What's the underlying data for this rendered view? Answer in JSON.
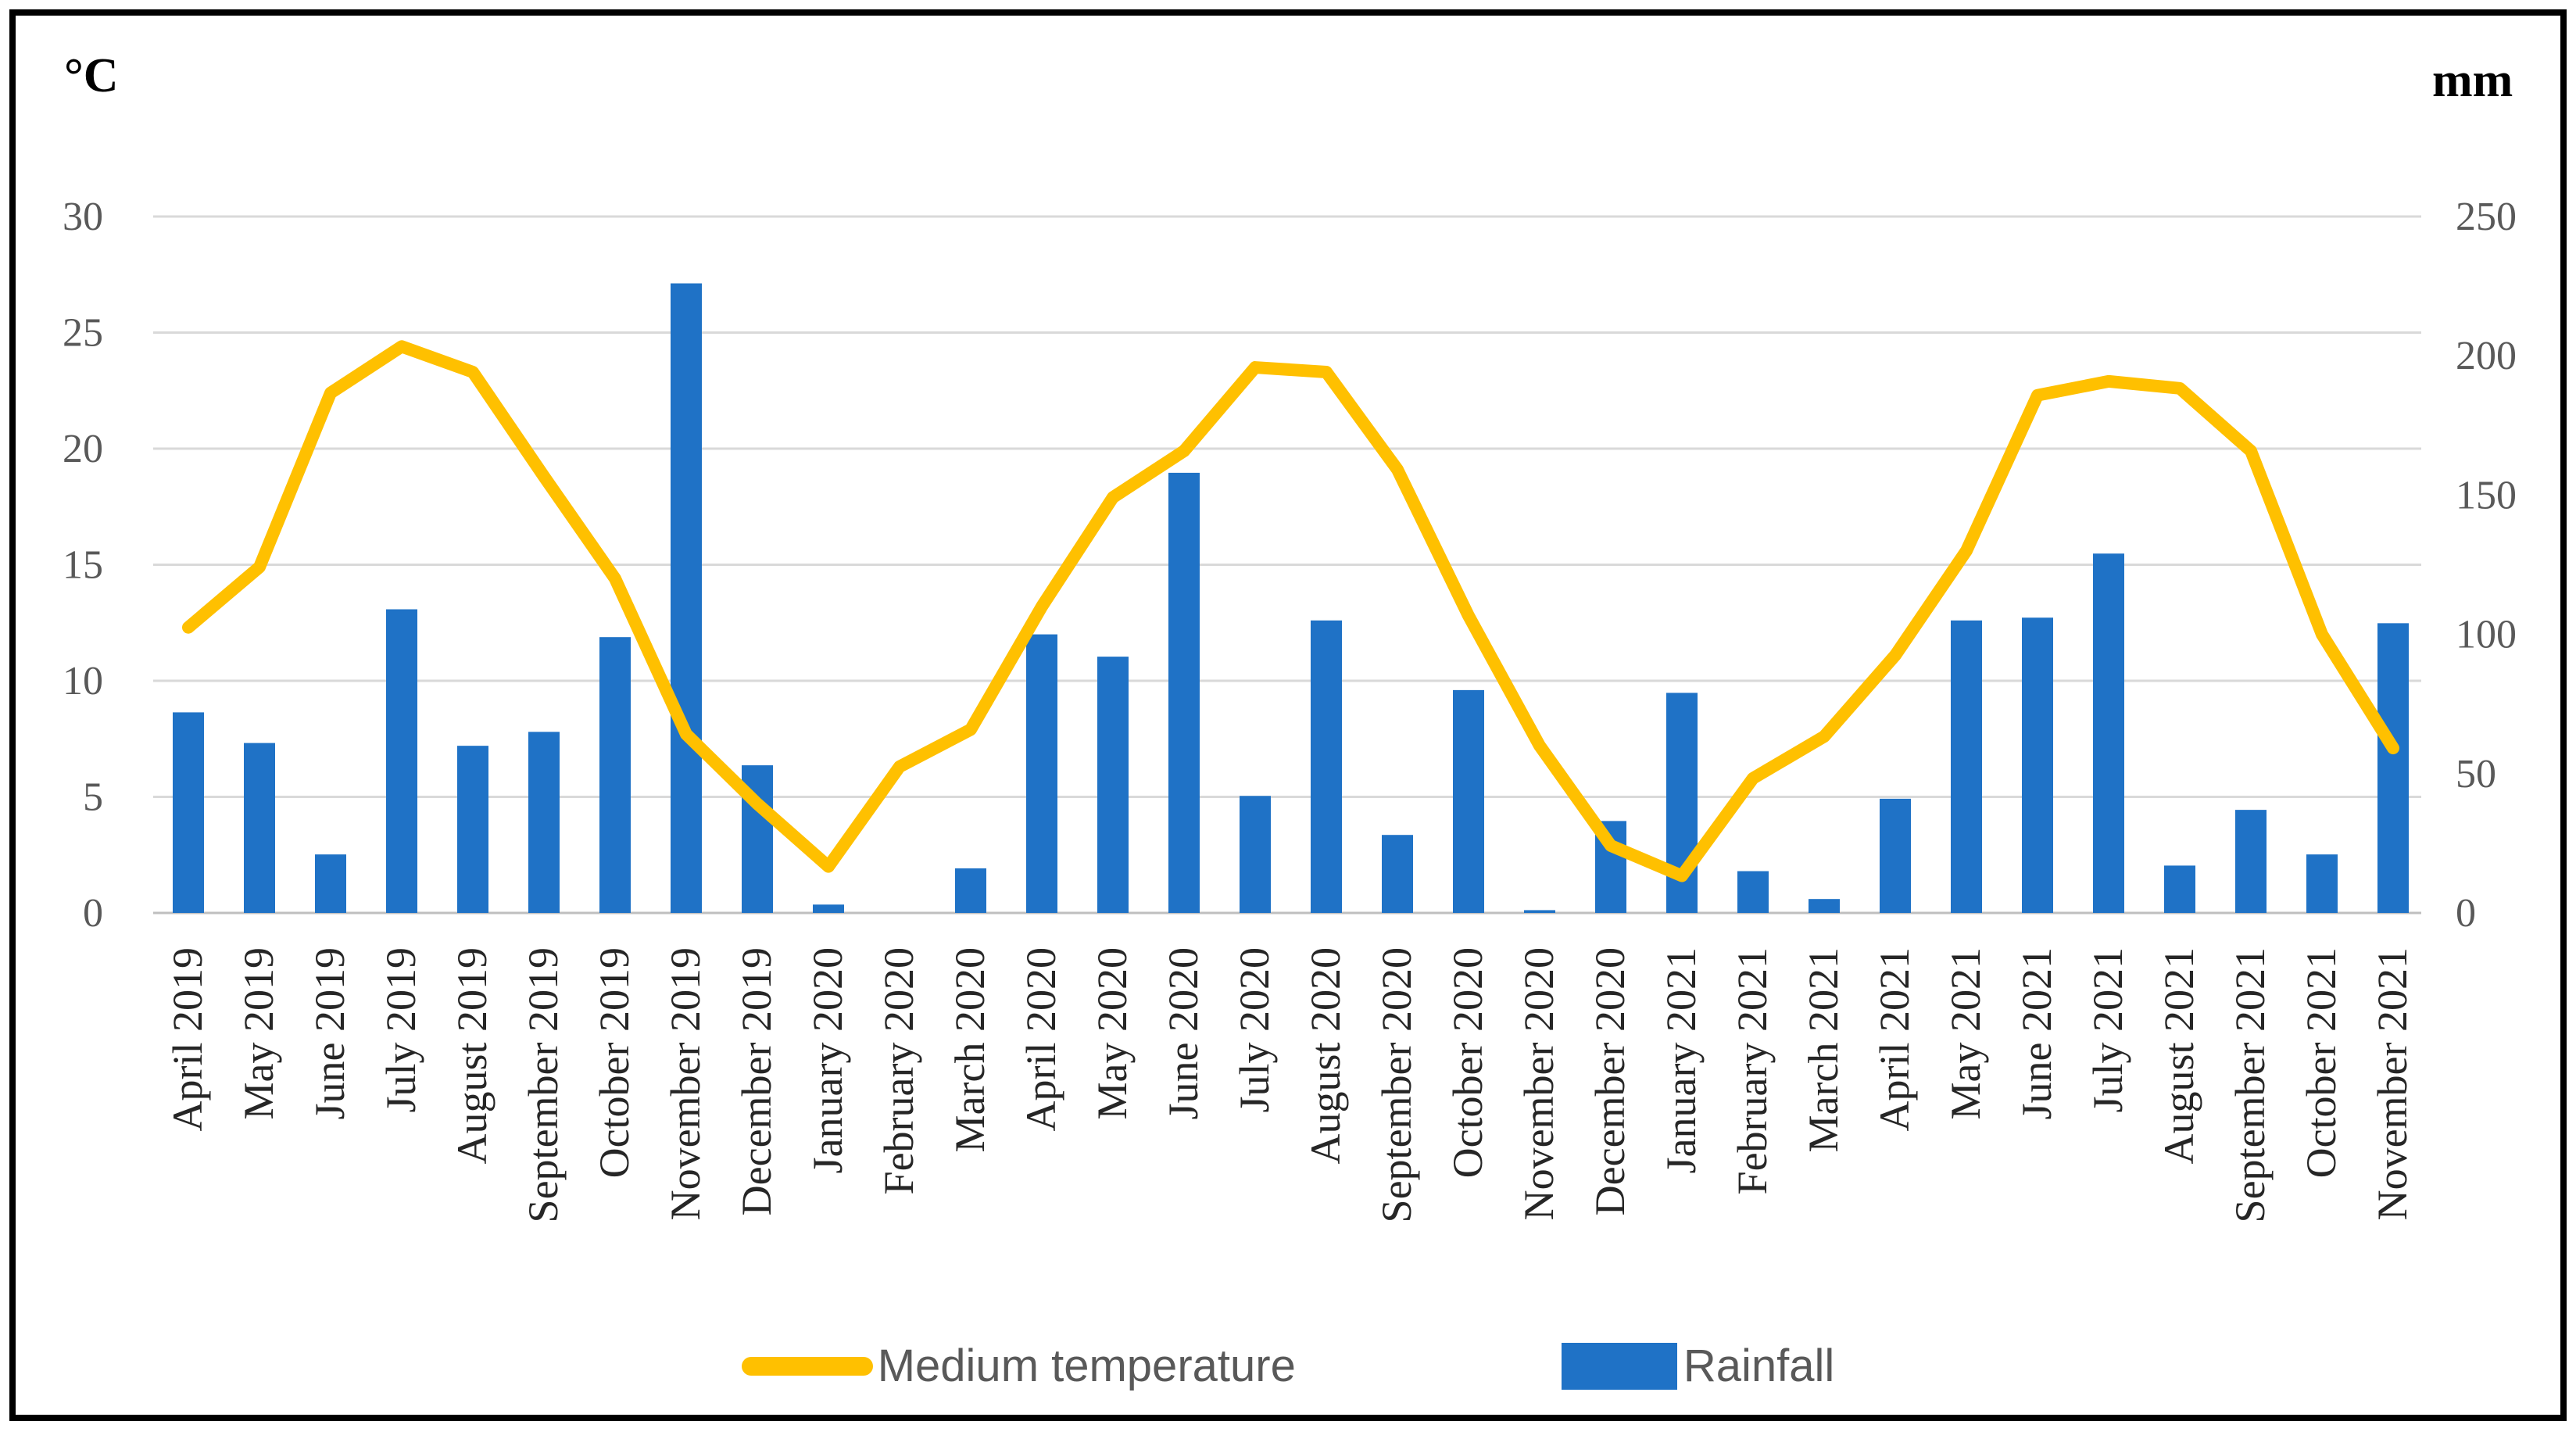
{
  "figure": {
    "left_axis_unit": "°C",
    "right_axis_unit": "mm",
    "legend_temperature_label": "Medium temperature",
    "legend_rainfall_label": "Rainfall"
  },
  "colors": {
    "rainfall_bar": "#1F72C6",
    "temperature_line": "#FFC000",
    "gridline": "#D9D9D9",
    "axis_line": "#BFBFBF",
    "tick_text": "#595959",
    "month_text": "#262626",
    "legend_text": "#595959"
  },
  "chart_data": {
    "type": "bar+line combo",
    "title": "",
    "xlabel": "",
    "ylabel_left": "°C",
    "ylabel_right": "mm",
    "grid": "horizontal",
    "legend_position": "bottom",
    "categories": [
      "April 2019",
      "May 2019",
      "June 2019",
      "July 2019",
      "August 2019",
      "September 2019",
      "October 2019",
      "November 2019",
      "December 2019",
      "January 2020",
      "February 2020",
      "March 2020",
      "April 2020",
      "May 2020",
      "June 2020",
      "July 2020",
      "August 2020",
      "September 2020",
      "October 2020",
      "November 2020",
      "December 2020",
      "January 2021",
      "February 2021",
      "March 2021",
      "April 2021",
      "May 2021",
      "June 2021",
      "July 2021",
      "August 2021",
      "September 2021",
      "October 2021",
      "November 2021"
    ],
    "series": [
      {
        "name": "Rainfall",
        "type": "bar",
        "axis": "right",
        "unit": "mm",
        "color": "#1F72C6",
        "values": [
          72,
          61,
          21,
          109,
          60,
          65,
          99,
          226,
          53,
          3,
          0,
          16,
          100,
          92,
          158,
          42,
          105,
          28,
          80,
          1,
          33,
          79,
          15,
          5,
          41,
          105,
          106,
          129,
          17,
          37,
          21,
          104
        ]
      },
      {
        "name": "Medium temperature",
        "type": "line",
        "axis": "left",
        "unit": "°C",
        "color": "#FFC000",
        "values": [
          12.3,
          14.9,
          22.4,
          24.4,
          23.3,
          18.8,
          14.4,
          7.7,
          4.7,
          2.0,
          6.3,
          7.9,
          13.2,
          17.9,
          19.9,
          23.5,
          23.3,
          19.1,
          12.8,
          7.2,
          2.9,
          1.6,
          5.8,
          7.6,
          11.1,
          15.6,
          22.3,
          22.9,
          22.6,
          19.9,
          12.0,
          7.1
        ]
      }
    ],
    "left_axis": {
      "label": "°C",
      "min": 0,
      "max": 30,
      "tick_step": 5,
      "ticks": [
        0,
        5,
        10,
        15,
        20,
        25,
        30
      ]
    },
    "right_axis": {
      "label": "mm",
      "min": 0,
      "max": 250,
      "tick_step": 50,
      "ticks": [
        0,
        50,
        100,
        150,
        200,
        250
      ]
    }
  }
}
